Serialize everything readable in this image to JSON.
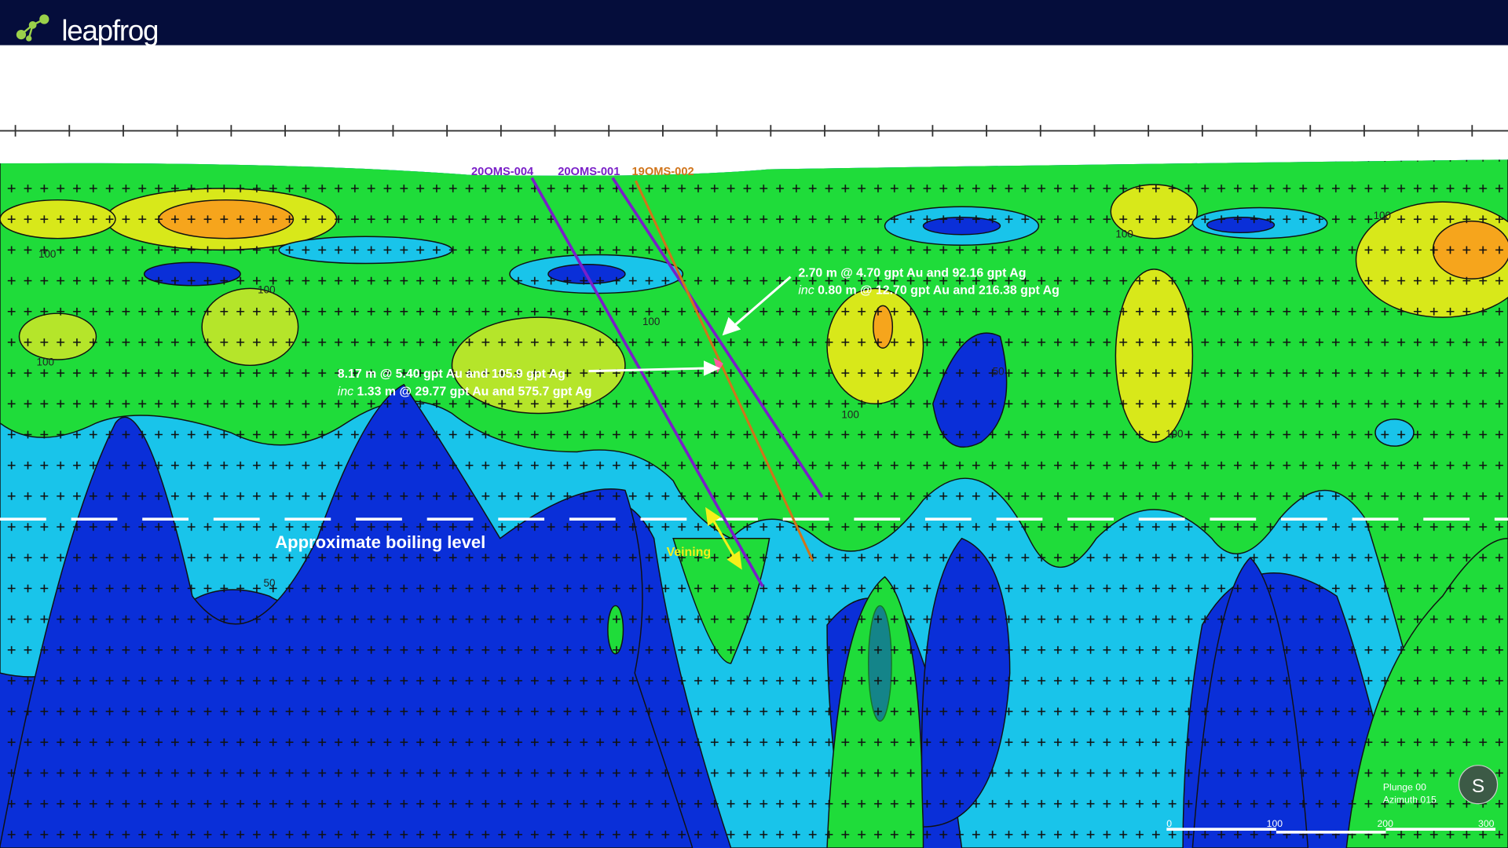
{
  "header": {
    "logo": "leapfrog"
  },
  "drillholes": [
    {
      "label": "20OMS-004"
    },
    {
      "label": "20OMS-001"
    },
    {
      "label": "19OMS-002"
    }
  ],
  "annotations": [
    {
      "line1": "2.70 m @ 4.70 gpt Au and 92.16 gpt Ag",
      "line2_prefix": "inc",
      "line2": "0.80 m @ 12.70 gpt Au and 216.38 gpt Ag"
    },
    {
      "line1": "8.17 m @ 5.40 gpt Au and 105.9 gpt Ag",
      "line2_prefix": "inc",
      "line2": "1.33 m @ 29.77 gpt Au and 575.7 gpt Ag"
    }
  ],
  "boiling_level": "Approximate boiling level",
  "veining": "Veining",
  "contour_labels": [
    "100",
    "100",
    "100",
    "100",
    "100",
    "100",
    "100",
    "100",
    "50",
    "50"
  ],
  "view": {
    "plunge": "Plunge 00",
    "azimuth": "Azimuth 015",
    "compass": "S"
  },
  "scale_bar": {
    "labels": [
      "0",
      "100",
      "200",
      "300"
    ]
  }
}
